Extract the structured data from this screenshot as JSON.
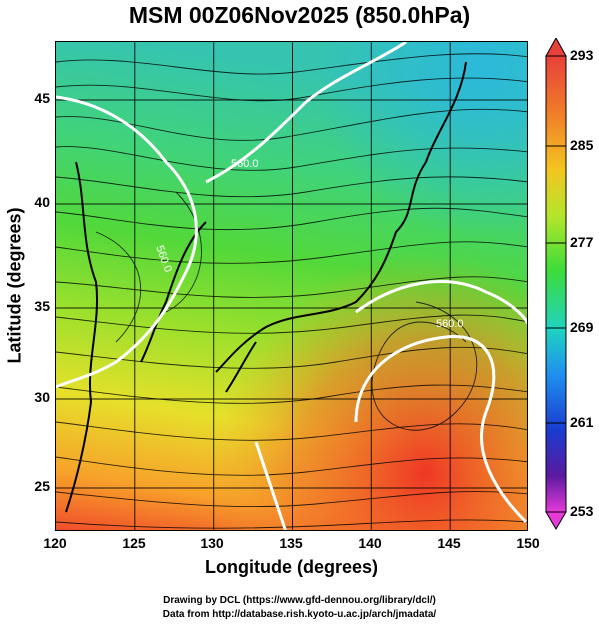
{
  "title": "MSM 00Z06Nov2025 (850.0hPa)",
  "axes": {
    "xlabel": "Longitude (degrees)",
    "ylabel": "Latitude  (degrees)",
    "xticks": [
      "120",
      "125",
      "130",
      "135",
      "140",
      "145",
      "150"
    ],
    "yticks": [
      "25",
      "30",
      "35",
      "40",
      "45"
    ]
  },
  "colorbar": {
    "labels": [
      "293",
      "285",
      "277",
      "269",
      "261",
      "253"
    ],
    "colors": [
      "#e8403a",
      "#f07a2a",
      "#f3c51f",
      "#b5e52a",
      "#3ddc3a",
      "#1fd3c0",
      "#1f8ff0",
      "#1a3cd0",
      "#5a1aa0",
      "#e63ad8"
    ]
  },
  "contours": [
    "560.0",
    "560.0",
    "560.0"
  ],
  "credits": {
    "line1": "Drawing by DCL (https://www.gfd-dennou.org/library/dcl/)",
    "line2": "Data from http://database.rish.kyoto-u.ac.jp/arch/jmadata/"
  }
}
